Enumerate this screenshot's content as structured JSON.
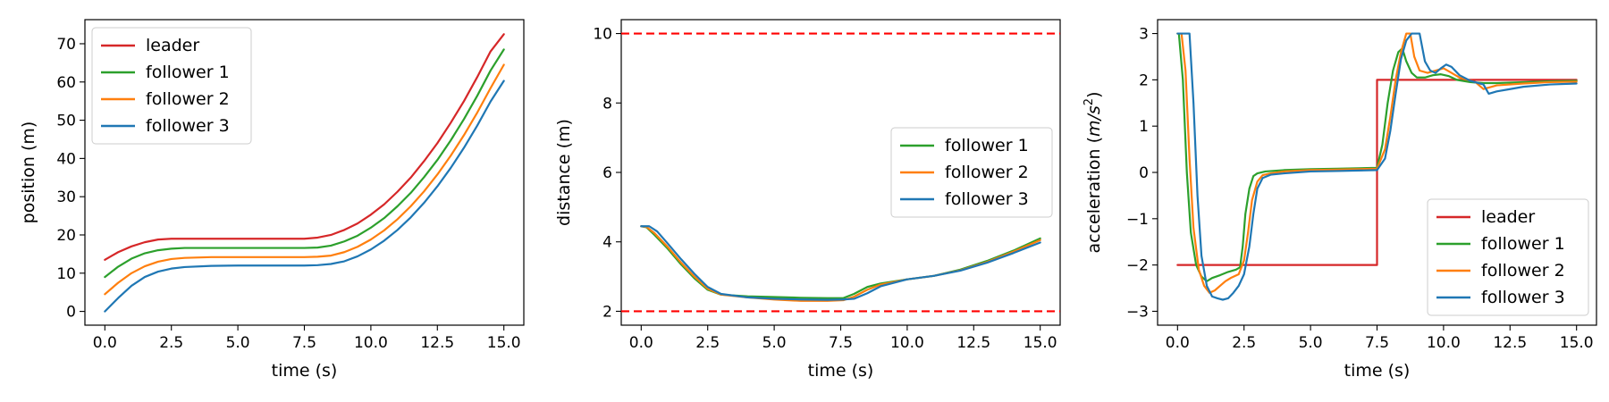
{
  "colors": {
    "leader": "#d62728",
    "follower 1": "#2ca02c",
    "follower 2": "#ff7f0e",
    "follower 3": "#1f77b4",
    "bound": "#ff0000"
  },
  "chart_data": [
    {
      "id": "position",
      "type": "line",
      "xlabel": "time (s)",
      "ylabel": "position (m)",
      "xlim": [
        -0.75,
        15.75
      ],
      "ylim": [
        -3.6,
        76.3
      ],
      "xticks": [
        0.0,
        2.5,
        5.0,
        7.5,
        10.0,
        12.5,
        15.0
      ],
      "xtick_labels": [
        "0.0",
        "2.5",
        "5.0",
        "7.5",
        "10.0",
        "12.5",
        "15.0"
      ],
      "yticks": [
        0,
        10,
        20,
        30,
        40,
        50,
        60,
        70
      ],
      "ytick_labels": [
        "0",
        "10",
        "20",
        "30",
        "40",
        "50",
        "60",
        "70"
      ],
      "legend": "top-left",
      "grid": false,
      "series": [
        {
          "name": "leader",
          "x": [
            0,
            0.5,
            1,
            1.5,
            2,
            2.5,
            3,
            4,
            5,
            6,
            7,
            7.5,
            8,
            8.5,
            9,
            9.5,
            10,
            10.5,
            11,
            11.5,
            12,
            12.5,
            13,
            13.5,
            14,
            14.5,
            15
          ],
          "y": [
            13.5,
            15.5,
            17.0,
            18.1,
            18.8,
            19.0,
            19.0,
            19.0,
            19.0,
            19.0,
            19.0,
            19.0,
            19.3,
            20.0,
            21.3,
            23.0,
            25.3,
            28.0,
            31.3,
            35.0,
            39.3,
            44.0,
            49.3,
            55.0,
            61.3,
            68.0,
            72.5
          ]
        },
        {
          "name": "follower 1",
          "x": [
            0,
            0.5,
            1,
            1.5,
            2,
            2.5,
            3,
            4,
            5,
            6,
            7,
            7.5,
            8,
            8.5,
            9,
            9.5,
            10,
            10.5,
            11,
            11.5,
            12,
            12.5,
            13,
            13.5,
            14,
            14.5,
            15
          ],
          "y": [
            9.0,
            11.7,
            13.8,
            15.2,
            16.0,
            16.4,
            16.6,
            16.6,
            16.6,
            16.6,
            16.6,
            16.6,
            16.7,
            17.2,
            18.3,
            19.8,
            21.9,
            24.4,
            27.5,
            31.0,
            35.1,
            39.6,
            44.7,
            50.3,
            56.4,
            63.0,
            68.5
          ]
        },
        {
          "name": "follower 2",
          "x": [
            0,
            0.5,
            1,
            1.5,
            2,
            2.5,
            3,
            4,
            5,
            6,
            7,
            7.5,
            8,
            8.5,
            9,
            9.5,
            10,
            10.5,
            11,
            11.5,
            12,
            12.5,
            13,
            13.5,
            14,
            14.5,
            15
          ],
          "y": [
            4.5,
            7.5,
            10.0,
            11.8,
            13.0,
            13.7,
            14.0,
            14.2,
            14.2,
            14.2,
            14.2,
            14.2,
            14.3,
            14.6,
            15.5,
            16.9,
            18.8,
            21.2,
            24.1,
            27.5,
            31.4,
            35.8,
            40.7,
            46.1,
            52.0,
            58.4,
            64.5
          ]
        },
        {
          "name": "follower 3",
          "x": [
            0,
            0.5,
            1,
            1.5,
            2,
            2.5,
            3,
            4,
            5,
            6,
            7,
            7.5,
            8,
            8.5,
            9,
            9.5,
            10,
            10.5,
            11,
            11.5,
            12,
            12.5,
            13,
            13.5,
            14,
            14.5,
            15
          ],
          "y": [
            0.0,
            3.5,
            6.7,
            9.0,
            10.4,
            11.2,
            11.6,
            11.9,
            12.0,
            12.0,
            12.0,
            12.0,
            12.1,
            12.4,
            13.1,
            14.4,
            16.2,
            18.5,
            21.3,
            24.6,
            28.4,
            32.7,
            37.5,
            42.8,
            48.6,
            54.9,
            60.3
          ]
        }
      ]
    },
    {
      "id": "distance",
      "type": "line",
      "xlabel": "time (s)",
      "ylabel": "distance (m)",
      "xlim": [
        -0.75,
        15.75
      ],
      "ylim": [
        1.6,
        10.4
      ],
      "xticks": [
        0.0,
        2.5,
        5.0,
        7.5,
        10.0,
        12.5,
        15.0
      ],
      "xtick_labels": [
        "0.0",
        "2.5",
        "5.0",
        "7.5",
        "10.0",
        "12.5",
        "15.0"
      ],
      "yticks": [
        2,
        4,
        6,
        8,
        10
      ],
      "ytick_labels": [
        "2",
        "4",
        "6",
        "8",
        "10"
      ],
      "hlines": [
        2,
        10
      ],
      "legend": "center-right",
      "grid": false,
      "series": [
        {
          "name": "follower 1",
          "x": [
            0,
            0.2,
            0.5,
            1,
            1.5,
            2,
            2.5,
            3,
            4,
            5,
            6,
            7,
            7.6,
            8,
            8.5,
            9,
            10,
            11,
            12,
            13,
            14,
            15
          ],
          "y": [
            4.45,
            4.42,
            4.2,
            3.8,
            3.35,
            2.95,
            2.62,
            2.48,
            2.43,
            2.41,
            2.39,
            2.38,
            2.38,
            2.5,
            2.7,
            2.8,
            2.92,
            3.02,
            3.2,
            3.45,
            3.75,
            4.1
          ]
        },
        {
          "name": "follower 2",
          "x": [
            0,
            0.2,
            0.5,
            1,
            1.5,
            2,
            2.5,
            3,
            4,
            5,
            6,
            7,
            7.6,
            8,
            8.5,
            9,
            10,
            11,
            12,
            13,
            14,
            15
          ],
          "y": [
            4.45,
            4.43,
            4.25,
            3.85,
            3.4,
            3.0,
            2.65,
            2.48,
            2.4,
            2.34,
            2.3,
            2.3,
            2.32,
            2.42,
            2.62,
            2.77,
            2.92,
            3.02,
            3.18,
            3.42,
            3.72,
            4.05
          ]
        },
        {
          "name": "follower 3",
          "x": [
            0,
            0.3,
            0.6,
            1,
            1.5,
            2,
            2.5,
            3,
            4,
            5,
            6,
            7,
            7.6,
            8,
            8.5,
            9,
            10,
            11,
            12,
            13,
            14,
            15
          ],
          "y": [
            4.45,
            4.45,
            4.3,
            3.95,
            3.5,
            3.08,
            2.7,
            2.5,
            2.4,
            2.36,
            2.34,
            2.33,
            2.34,
            2.36,
            2.52,
            2.72,
            2.92,
            3.02,
            3.17,
            3.4,
            3.68,
            3.98
          ]
        }
      ]
    },
    {
      "id": "acceleration",
      "type": "line",
      "xlabel": "time (s)",
      "ylabel": "acceleration (m/s²)",
      "ylabel_parts": [
        "acceleration (",
        "m",
        "/",
        "s",
        "2",
        ")"
      ],
      "xlim": [
        -0.75,
        15.75
      ],
      "ylim": [
        -3.3,
        3.3
      ],
      "xticks": [
        0.0,
        2.5,
        5.0,
        7.5,
        10.0,
        12.5,
        15.0
      ],
      "xtick_labels": [
        "0.0",
        "2.5",
        "5.0",
        "7.5",
        "10.0",
        "12.5",
        "15.0"
      ],
      "yticks": [
        -3,
        -2,
        -1,
        0,
        1,
        2,
        3
      ],
      "ytick_labels": [
        "−3",
        "−2",
        "−1",
        "0",
        "1",
        "2",
        "3"
      ],
      "legend": "bottom-right",
      "grid": false,
      "series": [
        {
          "name": "leader",
          "x": [
            0,
            7.5,
            7.5,
            15
          ],
          "y": [
            -2,
            -2,
            2,
            2
          ]
        },
        {
          "name": "follower 1",
          "x": [
            0,
            0.05,
            0.2,
            0.35,
            0.5,
            0.7,
            0.9,
            1.1,
            1.3,
            1.6,
            1.9,
            2.2,
            2.35,
            2.45,
            2.55,
            2.7,
            2.85,
            3.0,
            3.3,
            4,
            5,
            6,
            7.5,
            7.7,
            7.9,
            8.1,
            8.3,
            8.45,
            8.6,
            8.8,
            9.0,
            9.3,
            9.6,
            9.9,
            10.2,
            10.5,
            11.0,
            11.5,
            12,
            13,
            14,
            15
          ],
          "y": [
            3,
            3,
            2.0,
            0.0,
            -1.3,
            -2.0,
            -2.25,
            -2.35,
            -2.28,
            -2.22,
            -2.15,
            -2.1,
            -2.05,
            -1.6,
            -0.9,
            -0.35,
            -0.08,
            -0.02,
            0.02,
            0.05,
            0.07,
            0.08,
            0.1,
            0.6,
            1.5,
            2.2,
            2.6,
            2.68,
            2.4,
            2.15,
            2.05,
            2.05,
            2.1,
            2.12,
            2.08,
            2.0,
            1.95,
            1.93,
            1.93,
            1.95,
            1.97,
            1.98
          ]
        },
        {
          "name": "follower 2",
          "x": [
            0,
            0.15,
            0.3,
            0.45,
            0.6,
            0.8,
            1.0,
            1.2,
            1.4,
            1.6,
            1.8,
            2.0,
            2.3,
            2.5,
            2.65,
            2.8,
            3.0,
            3.2,
            3.5,
            4,
            5,
            6,
            7.5,
            7.8,
            8.0,
            8.2,
            8.4,
            8.6,
            8.75,
            8.9,
            9.1,
            9.4,
            9.7,
            10.0,
            10.3,
            10.6,
            10.9,
            11.2,
            11.5,
            12,
            13,
            14,
            15
          ],
          "y": [
            3,
            3,
            2.2,
            0.3,
            -1.2,
            -2.1,
            -2.45,
            -2.6,
            -2.55,
            -2.45,
            -2.35,
            -2.28,
            -2.2,
            -1.9,
            -1.3,
            -0.6,
            -0.2,
            -0.06,
            -0.02,
            0.02,
            0.05,
            0.06,
            0.08,
            0.5,
            1.2,
            2.0,
            2.6,
            3.0,
            3.0,
            2.5,
            2.2,
            2.15,
            2.2,
            2.25,
            2.15,
            2.05,
            2.0,
            1.95,
            1.8,
            1.88,
            1.92,
            1.95,
            1.96
          ]
        },
        {
          "name": "follower 3",
          "x": [
            0,
            0.3,
            0.45,
            0.6,
            0.75,
            0.9,
            1.1,
            1.3,
            1.5,
            1.7,
            1.9,
            2.1,
            2.3,
            2.5,
            2.7,
            2.85,
            3.0,
            3.2,
            3.5,
            4,
            5,
            6,
            7.5,
            7.8,
            8.0,
            8.2,
            8.4,
            8.6,
            8.8,
            9.0,
            9.1,
            9.3,
            9.5,
            9.7,
            9.9,
            10.1,
            10.3,
            10.6,
            11.0,
            11.5,
            11.7,
            12,
            12.5,
            13,
            14,
            15
          ],
          "y": [
            3,
            3,
            3,
            1.5,
            -0.5,
            -1.8,
            -2.45,
            -2.68,
            -2.72,
            -2.75,
            -2.72,
            -2.6,
            -2.45,
            -2.2,
            -1.6,
            -0.9,
            -0.35,
            -0.12,
            -0.05,
            -0.02,
            0.02,
            0.03,
            0.05,
            0.3,
            0.9,
            1.7,
            2.45,
            2.85,
            3.0,
            3.0,
            3.0,
            2.4,
            2.2,
            2.15,
            2.25,
            2.33,
            2.28,
            2.1,
            1.98,
            1.9,
            1.7,
            1.75,
            1.8,
            1.85,
            1.9,
            1.92
          ]
        }
      ]
    }
  ]
}
